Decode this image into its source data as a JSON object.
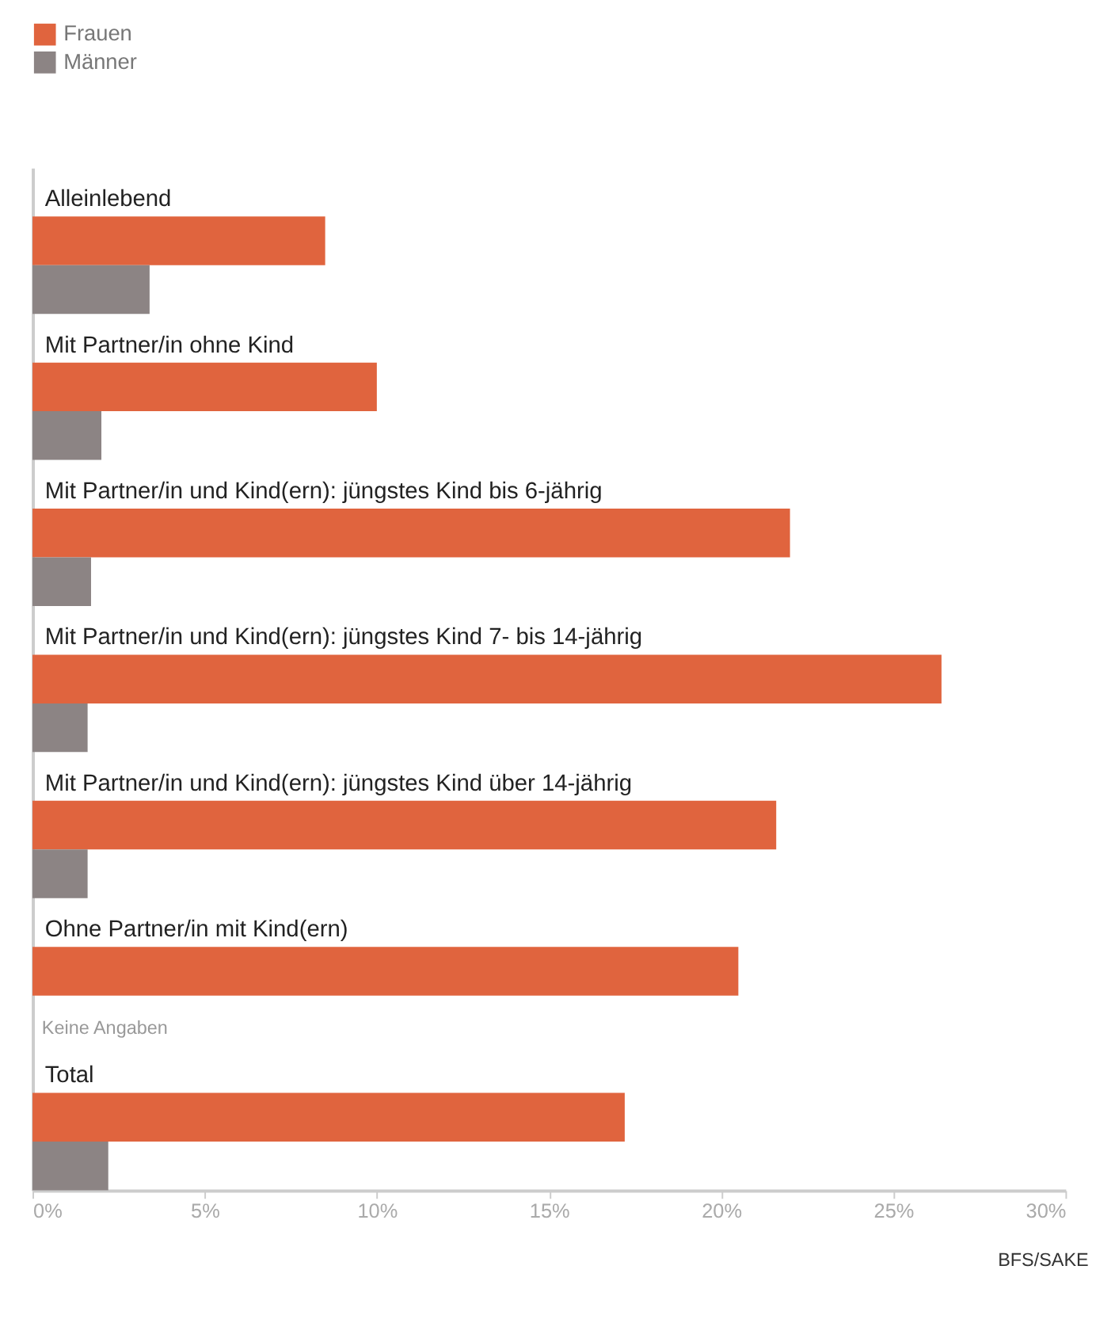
{
  "chart_data": {
    "type": "bar",
    "orientation": "horizontal",
    "categories": [
      "Alleinlebend",
      "Mit Partner/in ohne Kind",
      "Mit Partner/in und Kind(ern): jüngstes Kind bis 6-jährig",
      "Mit Partner/in und Kind(ern): jüngstes Kind 7- bis 14-jährig",
      "Mit Partner/in und Kind(ern): jüngstes Kind über 14-jährig",
      "Ohne Partner/in mit Kind(ern)",
      "Total"
    ],
    "series": [
      {
        "name": "Frauen",
        "color": "#e0643e",
        "values": [
          8.5,
          10.0,
          22.0,
          26.4,
          21.6,
          20.5,
          17.2
        ]
      },
      {
        "name": "Männer",
        "color": "#8c8484",
        "values": [
          3.4,
          2.0,
          1.7,
          1.6,
          1.6,
          null,
          2.2
        ]
      }
    ],
    "xlim": [
      0,
      30
    ],
    "xticks": [
      {
        "value": 0,
        "label": "0%"
      },
      {
        "value": 5,
        "label": "5%"
      },
      {
        "value": 10,
        "label": "10%"
      },
      {
        "value": 15,
        "label": "15%"
      },
      {
        "value": 20,
        "label": "20%"
      },
      {
        "value": 25,
        "label": "25%"
      },
      {
        "value": 30,
        "label": "30%"
      }
    ],
    "grid": false,
    "legend": "top left",
    "annotations": [
      {
        "text": "Keine Angaben",
        "x": 0,
        "y": "Ohne Partner/in mit Kind(ern)"
      },
      "BFS/SAKE"
    ]
  }
}
